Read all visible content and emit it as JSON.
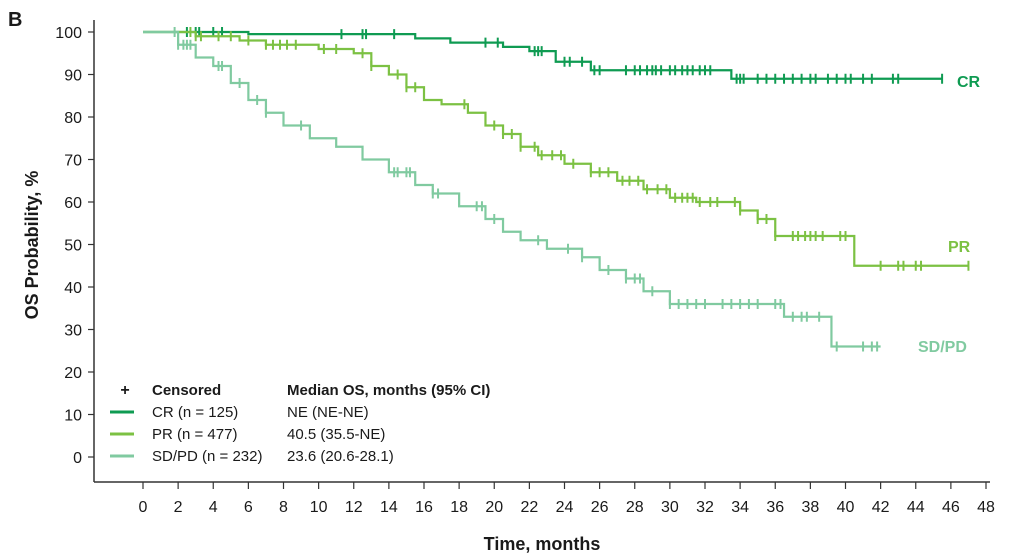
{
  "panel_label": "B",
  "chart_data": {
    "type": "line",
    "subtype": "kaplan-meier",
    "xlabel": "Time, months",
    "ylabel": "OS Probability, %",
    "xlim": [
      0,
      48
    ],
    "ylim": [
      0,
      100
    ],
    "xticks": [
      0,
      2,
      4,
      6,
      8,
      10,
      12,
      14,
      16,
      18,
      20,
      22,
      24,
      26,
      28,
      30,
      32,
      34,
      36,
      38,
      40,
      42,
      44,
      46,
      48
    ],
    "yticks": [
      0,
      10,
      20,
      30,
      40,
      50,
      60,
      70,
      80,
      90,
      100
    ],
    "grid": false,
    "legend": {
      "placement": "bottom-left",
      "censored_label": "Censored",
      "median_header": "Median OS, months (95% CI)"
    },
    "series": [
      {
        "name": "CR",
        "legend_label": "CR (n = 125)",
        "median": "NE (NE-NE)",
        "color": "#0f9b52",
        "steps": [
          [
            0,
            100
          ],
          [
            6,
            99.5
          ],
          [
            15.5,
            98.5
          ],
          [
            17.5,
            97.5
          ],
          [
            20.5,
            96.5
          ],
          [
            22,
            95.5
          ],
          [
            23.5,
            93
          ],
          [
            25.5,
            91
          ],
          [
            33.5,
            89
          ],
          [
            45.5,
            89
          ]
        ],
        "censored": [
          2.5,
          3,
          3.2,
          4,
          4.5,
          11.3,
          12.5,
          12.7,
          14.3,
          19.5,
          20.2,
          22.3,
          22.5,
          22.7,
          24,
          24.3,
          25,
          25.7,
          26,
          27.5,
          28,
          28.3,
          28.7,
          29,
          29.2,
          29.5,
          30,
          30.3,
          30.7,
          31,
          31.3,
          31.7,
          32,
          32.3,
          33.8,
          34,
          34.2,
          35,
          35.5,
          36,
          36.5,
          37,
          37.5,
          38,
          38.3,
          39,
          39.5,
          40,
          40.3,
          41,
          41.5,
          42.7,
          43,
          45.5
        ]
      },
      {
        "name": "PR",
        "legend_label": "PR (n = 477)",
        "median": "40.5 (35.5-NE)",
        "color": "#7cc143",
        "steps": [
          [
            0,
            100
          ],
          [
            3,
            99
          ],
          [
            5.5,
            98
          ],
          [
            7,
            97
          ],
          [
            10,
            96
          ],
          [
            12,
            95
          ],
          [
            13,
            92
          ],
          [
            14,
            90
          ],
          [
            15,
            87
          ],
          [
            16,
            84
          ],
          [
            17,
            83
          ],
          [
            18.5,
            81
          ],
          [
            19.5,
            78
          ],
          [
            20.5,
            76
          ],
          [
            21.5,
            73
          ],
          [
            22.5,
            71
          ],
          [
            24,
            69
          ],
          [
            25.5,
            67
          ],
          [
            27,
            65
          ],
          [
            28.5,
            63
          ],
          [
            30,
            61
          ],
          [
            31.5,
            60
          ],
          [
            34,
            58
          ],
          [
            35,
            56
          ],
          [
            36,
            52
          ],
          [
            40.5,
            45
          ],
          [
            47,
            45
          ]
        ],
        "censored": [
          2.7,
          3,
          3.3,
          4.3,
          5,
          6,
          7,
          7.4,
          7.8,
          8.2,
          8.7,
          10.3,
          11,
          12.5,
          13,
          14.5,
          15,
          15.5,
          18.3,
          20,
          20.5,
          21,
          21.5,
          22.3,
          22.7,
          23.3,
          23.8,
          24.5,
          25.5,
          26,
          26.5,
          27.3,
          27.7,
          28.2,
          28.7,
          29.3,
          29.8,
          30.3,
          30.7,
          31,
          31.3,
          31.7,
          32.3,
          32.7,
          33.7,
          34,
          35,
          35.5,
          36,
          37,
          37.3,
          37.7,
          38,
          38.3,
          38.7,
          39.7,
          40,
          42,
          43,
          43.3,
          44,
          44.3,
          47
        ]
      },
      {
        "name": "SD/PD",
        "legend_label": "SD/PD (n = 232)",
        "median": "23.6 (20.6-28.1)",
        "color": "#80caa0",
        "steps": [
          [
            0,
            100
          ],
          [
            2,
            97
          ],
          [
            3,
            94
          ],
          [
            4,
            92
          ],
          [
            5,
            88
          ],
          [
            6,
            84
          ],
          [
            7,
            81
          ],
          [
            8,
            78
          ],
          [
            9.5,
            75
          ],
          [
            11,
            73
          ],
          [
            12.5,
            70
          ],
          [
            14,
            67
          ],
          [
            15.5,
            64
          ],
          [
            16.5,
            62
          ],
          [
            18,
            59
          ],
          [
            19.5,
            56
          ],
          [
            20.5,
            53
          ],
          [
            21.5,
            51
          ],
          [
            23,
            49
          ],
          [
            25,
            47
          ],
          [
            26,
            44
          ],
          [
            27.5,
            42
          ],
          [
            28.5,
            39
          ],
          [
            30,
            36
          ],
          [
            36.5,
            33
          ],
          [
            39.2,
            26
          ],
          [
            42,
            26
          ]
        ],
        "censored": [
          1.8,
          2,
          2.3,
          2.5,
          2.7,
          4.3,
          4.5,
          5.5,
          6.5,
          7,
          9,
          14.3,
          14.5,
          15,
          15.2,
          16.5,
          16.8,
          19,
          19.3,
          20,
          22.5,
          24.2,
          25,
          26.5,
          27.5,
          28,
          28.3,
          29,
          30,
          30.5,
          31,
          31.5,
          32,
          33,
          33.5,
          34,
          34.5,
          35,
          36,
          36.3,
          37,
          37.5,
          37.8,
          38.5,
          39.5,
          41,
          41.5,
          41.8
        ]
      }
    ]
  }
}
